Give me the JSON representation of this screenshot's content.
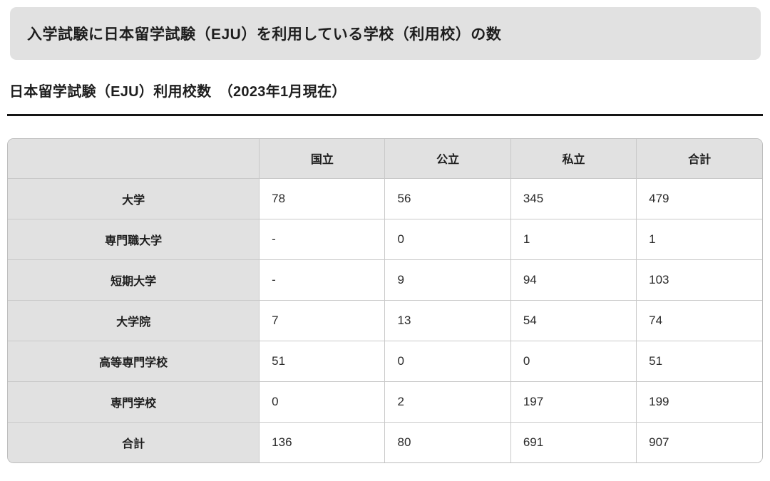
{
  "page": {
    "header_title": "入学試験に日本留学試験（EJU）を利用している学校（利用校）の数",
    "section_title": "日本留学試験（EJU）利用校数　（2023年1月現在）"
  },
  "colors": {
    "panel_gray": "#e1e1e1",
    "cell_border": "#c9c9c9",
    "outer_border": "#bdbdbd",
    "title_rule": "#151515",
    "text": "#1e1e1e"
  },
  "table": {
    "corner_label": "",
    "column_headers": [
      "国立",
      "公立",
      "私立",
      "合計"
    ],
    "rows": [
      {
        "label": "大学",
        "values": [
          "78",
          "56",
          "345",
          "479"
        ]
      },
      {
        "label": "専門職大学",
        "values": [
          "-",
          "0",
          "1",
          "1"
        ]
      },
      {
        "label": "短期大学",
        "values": [
          "-",
          "9",
          "94",
          "103"
        ]
      },
      {
        "label": "大学院",
        "values": [
          "7",
          "13",
          "54",
          "74"
        ]
      },
      {
        "label": "高等専門学校",
        "values": [
          "51",
          "0",
          "0",
          "51"
        ]
      },
      {
        "label": "専門学校",
        "values": [
          "0",
          "2",
          "197",
          "199"
        ]
      },
      {
        "label": "合計",
        "values": [
          "136",
          "80",
          "691",
          "907"
        ]
      }
    ]
  }
}
